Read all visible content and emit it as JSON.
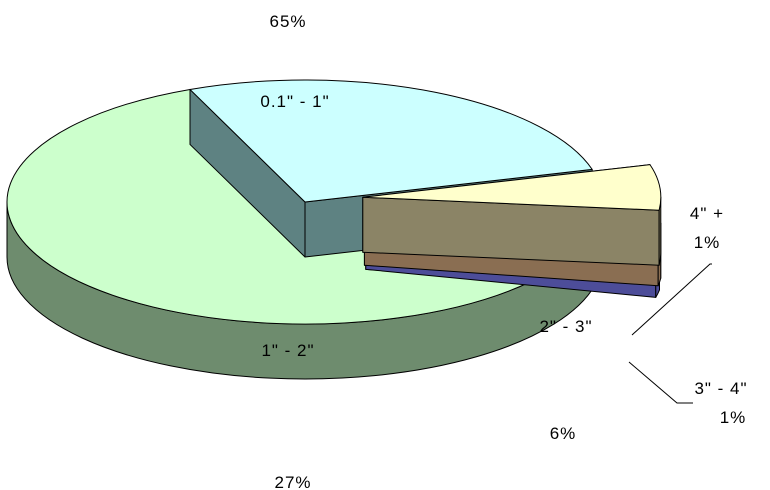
{
  "chart_data": {
    "type": "pie",
    "three_d": true,
    "exploded": true,
    "title": "",
    "legend": "none",
    "slices": [
      {
        "label": "0.1\" - 1\"",
        "value": 65,
        "value_label": "65%",
        "top_color": "#ccffcc",
        "side_color": "#6e8c6e"
      },
      {
        "label": "1\" - 2\"",
        "value": 27,
        "value_label": "27%",
        "top_color": "#ccffff",
        "side_color": "#5e8282"
      },
      {
        "label": "2\" - 3\"",
        "value": 6,
        "value_label": "6%",
        "top_color": "#ffffcc",
        "side_color": "#8b8466"
      },
      {
        "label": "3\" - 4\"",
        "value": 1,
        "value_label": "1%",
        "top_color": "#ffcc99",
        "side_color": "#8a6e52"
      },
      {
        "label": "4\" +",
        "value": 1,
        "value_label": "1%",
        "top_color": "#9999ff",
        "side_color": "#4d4d99"
      }
    ]
  }
}
